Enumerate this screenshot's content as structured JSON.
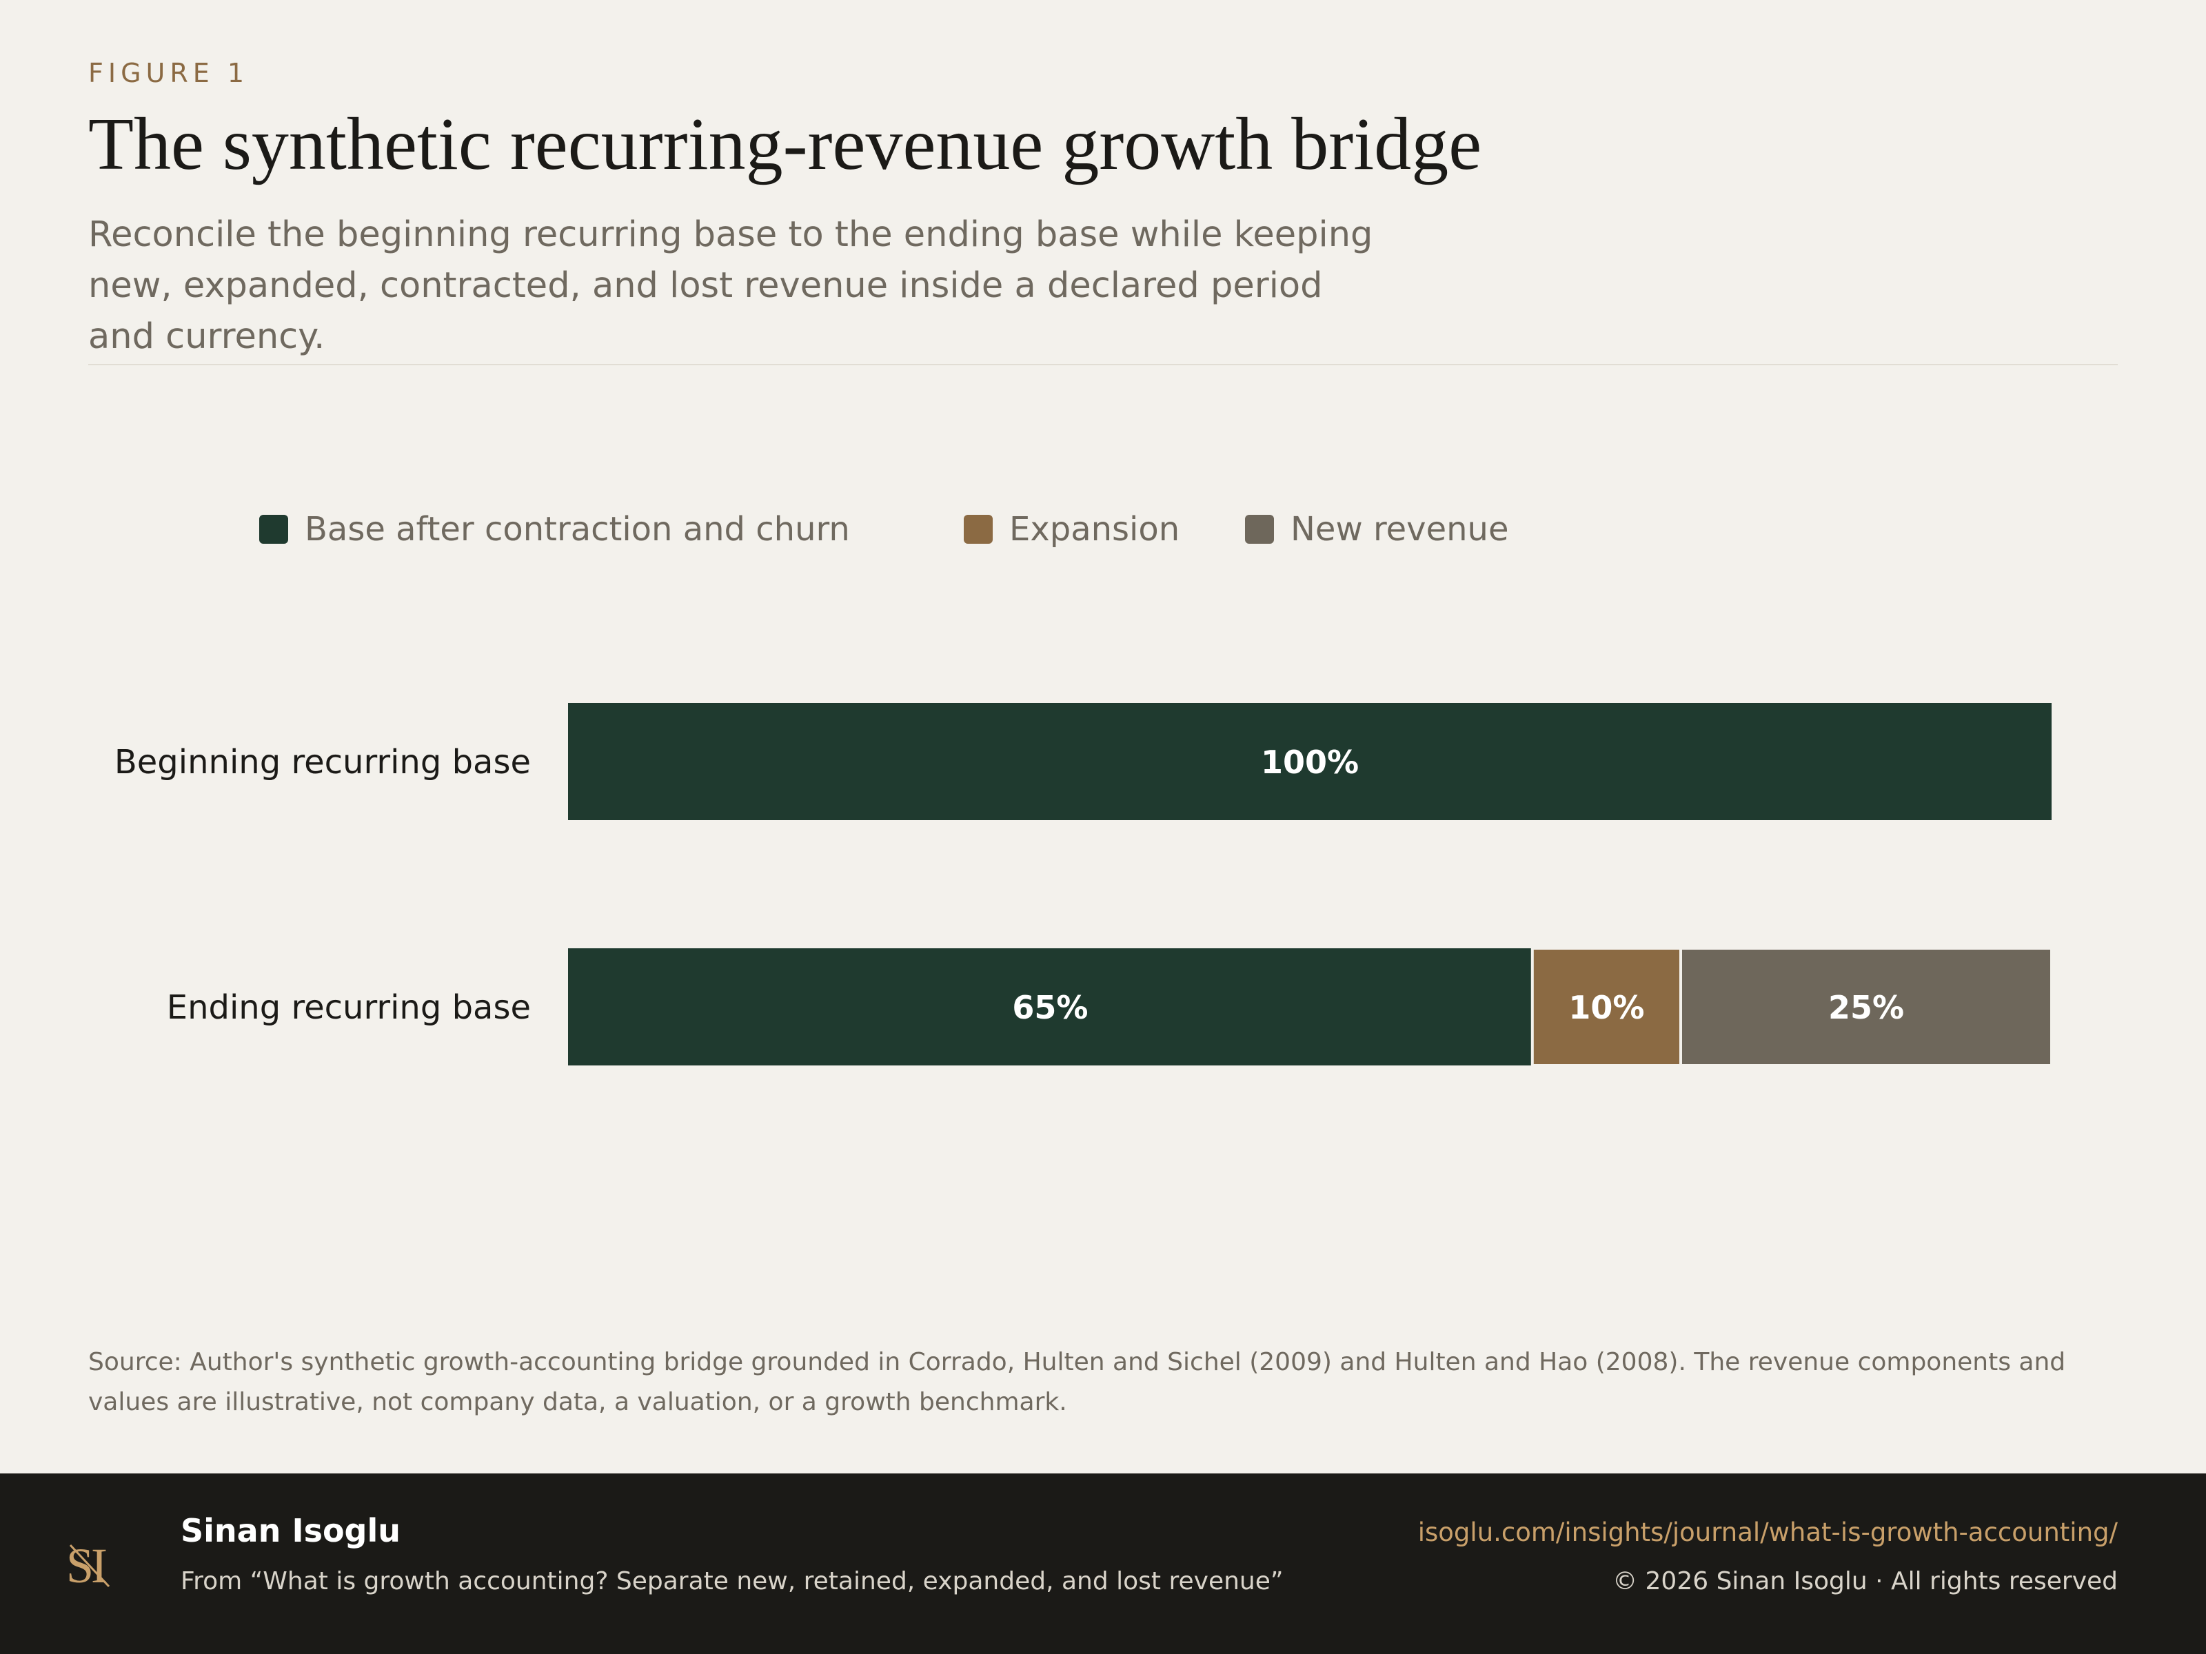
{
  "header": {
    "kicker": "FIGURE 1",
    "title": "The synthetic recurring-revenue growth bridge",
    "subtitle": "Reconcile the beginning recurring base to the ending base while keeping new, expanded, contracted, and lost revenue inside a declared period and currency."
  },
  "colors": {
    "background": "#f3f1ec",
    "base": "#1f3a2f",
    "expansion": "#8b6a43",
    "new_revenue": "#6e675b",
    "footer": "#1b1a17",
    "accent": "#c9a06a"
  },
  "legend": [
    {
      "label": "Base after contraction and churn",
      "color": "#1f3a2f"
    },
    {
      "label": "Expansion",
      "color": "#8b6a43"
    },
    {
      "label": "New revenue",
      "color": "#6e675b"
    }
  ],
  "chart_data": {
    "type": "bar",
    "orientation": "horizontal",
    "stacked": true,
    "title": "The synthetic recurring-revenue growth bridge",
    "categories": [
      "Beginning recurring base",
      "Ending recurring base"
    ],
    "series": [
      {
        "name": "Base after contraction and churn",
        "values": [
          100,
          65
        ],
        "labels": [
          "100%",
          "65%"
        ],
        "color": "#1f3a2f"
      },
      {
        "name": "Expansion",
        "values": [
          0,
          10
        ],
        "labels": [
          "",
          "10%"
        ],
        "color": "#8b6a43"
      },
      {
        "name": "New revenue",
        "values": [
          0,
          25
        ],
        "labels": [
          "",
          "25%"
        ],
        "color": "#6e675b"
      }
    ],
    "xlim": [
      0,
      100
    ],
    "grid": false,
    "legend_position": "top"
  },
  "source": "Source: Author's synthetic growth-accounting bridge grounded in Corrado, Hulten and Sichel (2009) and Hulten and Hao (2008). The revenue components and values are illustrative, not company data, a valuation, or a growth benchmark.",
  "footer": {
    "logo_text": "SI",
    "author": "Sinan Isoglu",
    "from": "From “What is growth accounting? Separate new, retained, expanded, and lost revenue”",
    "url": "isoglu.com/insights/journal/what-is-growth-accounting/",
    "copyright": "© 2026 Sinan Isoglu · All rights reserved"
  }
}
